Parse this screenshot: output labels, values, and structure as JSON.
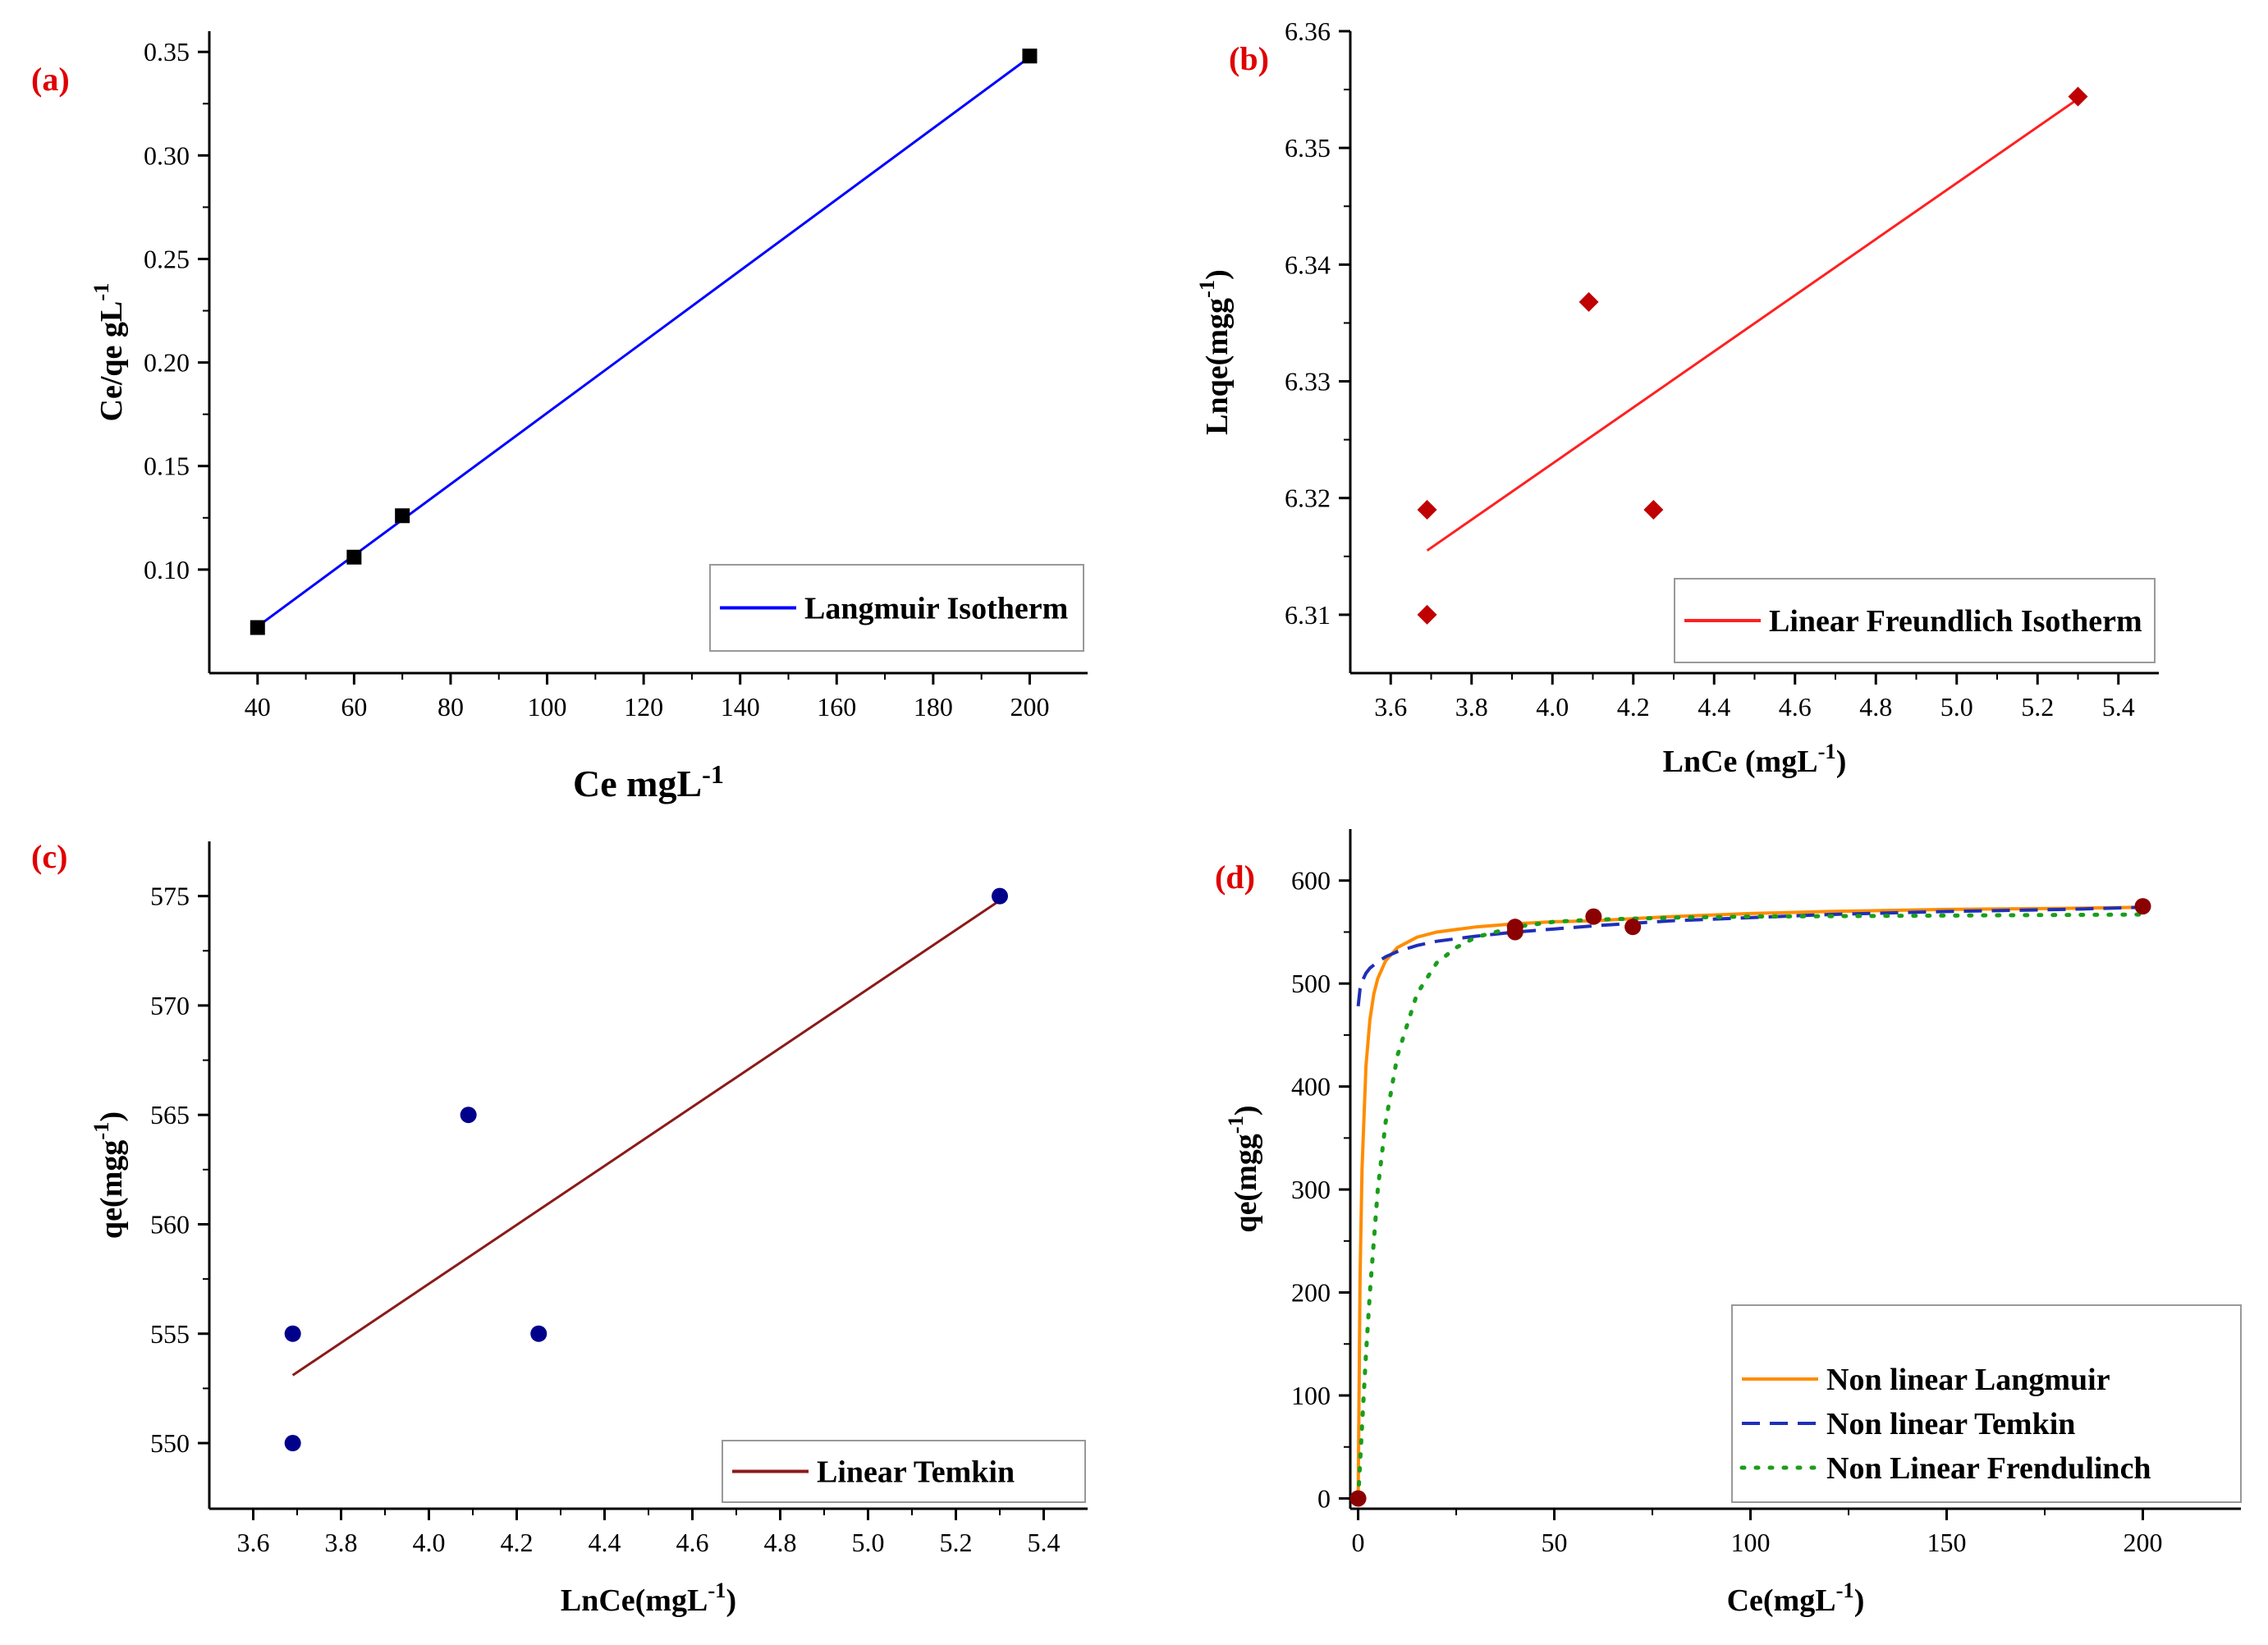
{
  "chart_data": [
    {
      "panel": "(a)",
      "type": "scatter",
      "xlabel": "Ce mgL",
      "xlabel_sup": "-1",
      "ylabel": "Ce/qe gL",
      "ylabel_sup": "-1",
      "xlim": [
        30,
        212
      ],
      "ylim": [
        0.05,
        0.36
      ],
      "xticks": [
        40,
        60,
        80,
        100,
        120,
        140,
        160,
        180,
        200
      ],
      "yticks": [
        0.1,
        0.15,
        0.2,
        0.25,
        0.3,
        0.35
      ],
      "ytick_labels": [
        "0.10",
        "0.15",
        "0.20",
        "0.25",
        "0.30",
        "0.35"
      ],
      "points": {
        "x": [
          40,
          60,
          70,
          200
        ],
        "y": [
          0.072,
          0.106,
          0.126,
          0.348
        ],
        "color": "#000000",
        "marker": "square"
      },
      "fit": {
        "name": "Langmuir Isotherm",
        "x": [
          40,
          200
        ],
        "y": [
          0.0725,
          0.3475
        ],
        "color": "#0000ff",
        "style": "solid"
      },
      "legend": "bottom-right",
      "grid": false
    },
    {
      "panel": "(b)",
      "type": "scatter",
      "xlabel": "LnCe (mgL",
      "xlabel_sup": "-1",
      "xlabel_tail": ")",
      "ylabel": "Lnqe(mgg",
      "ylabel_sup": "-1",
      "ylabel_tail": ")",
      "xlim": [
        3.5,
        5.5
      ],
      "ylim": [
        6.305,
        6.36
      ],
      "xticks": [
        3.6,
        3.8,
        4.0,
        4.2,
        4.4,
        4.6,
        4.8,
        5.0,
        5.2,
        5.4
      ],
      "xtick_labels": [
        "3.6",
        "3.8",
        "4.0",
        "4.2",
        "4.4",
        "4.6",
        "4.8",
        "5.0",
        "5.2",
        "5.4"
      ],
      "yticks": [
        6.31,
        6.32,
        6.33,
        6.34,
        6.35,
        6.36
      ],
      "ytick_labels": [
        "6.31",
        "6.32",
        "6.33",
        "6.34",
        "6.35",
        "6.36"
      ],
      "points": {
        "x": [
          3.69,
          3.69,
          4.09,
          4.25,
          5.3
        ],
        "y": [
          6.319,
          6.31,
          6.3368,
          6.319,
          6.3544
        ],
        "color": "#c00000",
        "marker": "diamond"
      },
      "fit": {
        "name": "Linear Freundlich Isotherm",
        "x": [
          3.69,
          5.3
        ],
        "y": [
          6.3155,
          6.3542
        ],
        "color": "#ff2020",
        "style": "solid"
      },
      "legend": "bottom-right",
      "grid": false
    },
    {
      "panel": "(c)",
      "type": "scatter",
      "xlabel": "LnCe(mgL",
      "xlabel_sup": "-1",
      "xlabel_tail": ")",
      "ylabel": "qe(mgg",
      "ylabel_sup": "-1",
      "ylabel_tail": ")",
      "xlim": [
        3.5,
        5.5
      ],
      "ylim": [
        547,
        577.5
      ],
      "xticks": [
        3.6,
        3.8,
        4.0,
        4.2,
        4.4,
        4.6,
        4.8,
        5.0,
        5.2,
        5.4
      ],
      "xtick_labels": [
        "3.6",
        "3.8",
        "4.0",
        "4.2",
        "4.4",
        "4.6",
        "4.8",
        "5.0",
        "5.2",
        "5.4"
      ],
      "yticks": [
        550,
        555,
        560,
        565,
        570,
        575
      ],
      "ytick_labels": [
        "550",
        "555",
        "560",
        "565",
        "570",
        "575"
      ],
      "points": {
        "x": [
          3.69,
          3.69,
          4.09,
          4.25,
          5.3
        ],
        "y": [
          555,
          550,
          565,
          555,
          575
        ],
        "color": "#00008b",
        "marker": "circle"
      },
      "fit": {
        "name": "Linear Temkin",
        "x": [
          3.69,
          5.3
        ],
        "y": [
          553.1,
          574.8
        ],
        "color": "#8b1a1a",
        "style": "solid"
      },
      "legend": "bottom-right",
      "grid": false
    },
    {
      "panel": "(d)",
      "type": "line",
      "xlabel": "Ce(mgL",
      "xlabel_sup": "-1",
      "xlabel_tail": ")",
      "ylabel": "qe(mgg",
      "ylabel_sup": "-1",
      "ylabel_tail": ")",
      "xlim": [
        -2,
        225
      ],
      "ylim": [
        -10,
        650
      ],
      "xticks": [
        0,
        50,
        100,
        150,
        200
      ],
      "yticks": [
        0,
        100,
        200,
        300,
        400,
        500,
        600
      ],
      "points": {
        "x": [
          0,
          40,
          40,
          60,
          70,
          200
        ],
        "y": [
          0,
          550,
          555,
          565,
          555,
          575
        ],
        "color": "#8b0000",
        "marker": "circle"
      },
      "series": [
        {
          "name": "Non linear Langmuir",
          "color": "#ff8c00",
          "style": "solid",
          "x": [
            0,
            0.5,
            1,
            2,
            3,
            4,
            5,
            7,
            10,
            15,
            20,
            30,
            40,
            50,
            60,
            80,
            100,
            120,
            150,
            180,
            200
          ],
          "y": [
            0,
            215,
            320,
            420,
            465,
            490,
            505,
            522,
            535,
            545,
            550,
            555,
            558,
            560,
            561,
            565,
            568,
            570,
            572,
            573,
            574
          ]
        },
        {
          "name": "Non linear Temkin",
          "color": "#1f2fb8",
          "style": "dashed",
          "x": [
            0,
            0.5,
            1,
            2,
            3,
            5,
            7,
            10,
            15,
            20,
            30,
            40,
            50,
            60,
            80,
            100,
            120,
            150,
            180,
            200
          ],
          "y": [
            478,
            495,
            502,
            510,
            515,
            521,
            526,
            531,
            537,
            541,
            546,
            550,
            553,
            556,
            561,
            564,
            567,
            570,
            572,
            574
          ]
        },
        {
          "name": "Non Linear Frendulinch",
          "color": "#1a9e1a",
          "style": "dotted",
          "x": [
            0,
            1,
            2,
            3,
            5,
            7,
            10,
            15,
            20,
            25,
            30,
            40,
            50,
            60,
            80,
            100,
            150,
            200
          ],
          "y": [
            0,
            70,
            140,
            200,
            300,
            365,
            430,
            490,
            520,
            535,
            545,
            555,
            560,
            562,
            564,
            565,
            566,
            567
          ]
        }
      ],
      "legend": "bottom-right",
      "grid": false
    }
  ]
}
